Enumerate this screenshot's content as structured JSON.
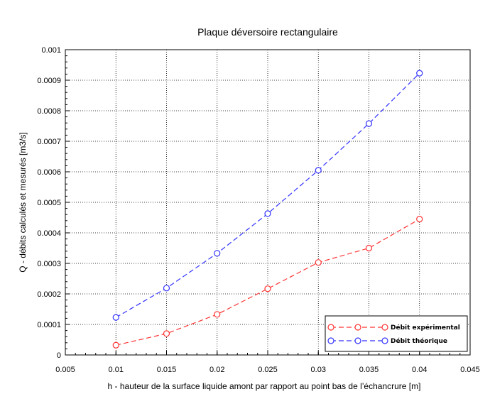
{
  "chart_data": {
    "type": "line",
    "title": "Plaque déversoire rectangulaire",
    "xlabel": "h - hauteur de la surface liquide amont par rapport au point bas de l’échancrure [m]",
    "ylabel": "Q - débits calculés et mesurés [m3/s]",
    "xlim": [
      0.005,
      0.045
    ],
    "ylim": [
      0,
      0.001
    ],
    "xticks": [
      "0.005",
      "0.01",
      "0.015",
      "0.02",
      "0.025",
      "0.03",
      "0.035",
      "0.04",
      "0.045"
    ],
    "yticks": [
      "0",
      "0.0001",
      "0.0002",
      "0.0003",
      "0.0004",
      "0.0005",
      "0.0006",
      "0.0007",
      "0.0008",
      "0.0009",
      "0.001"
    ],
    "grid": true,
    "legend_position": "bottom-right",
    "x": [
      0.01,
      0.015,
      0.02,
      0.025,
      0.03,
      0.035,
      0.04
    ],
    "series": [
      {
        "name": "Débit expérimental",
        "color": "#ff3333",
        "line_style": "dashed",
        "marker": "circle",
        "values": [
          3.2e-05,
          7e-05,
          0.000133,
          0.000217,
          0.000303,
          0.00035,
          0.000445
        ]
      },
      {
        "name": "Débit théorique",
        "color": "#3333ff",
        "line_style": "dashed",
        "marker": "circle",
        "values": [
          0.000123,
          0.000219,
          0.000333,
          0.000463,
          0.000605,
          0.000758,
          0.000923
        ]
      }
    ]
  }
}
